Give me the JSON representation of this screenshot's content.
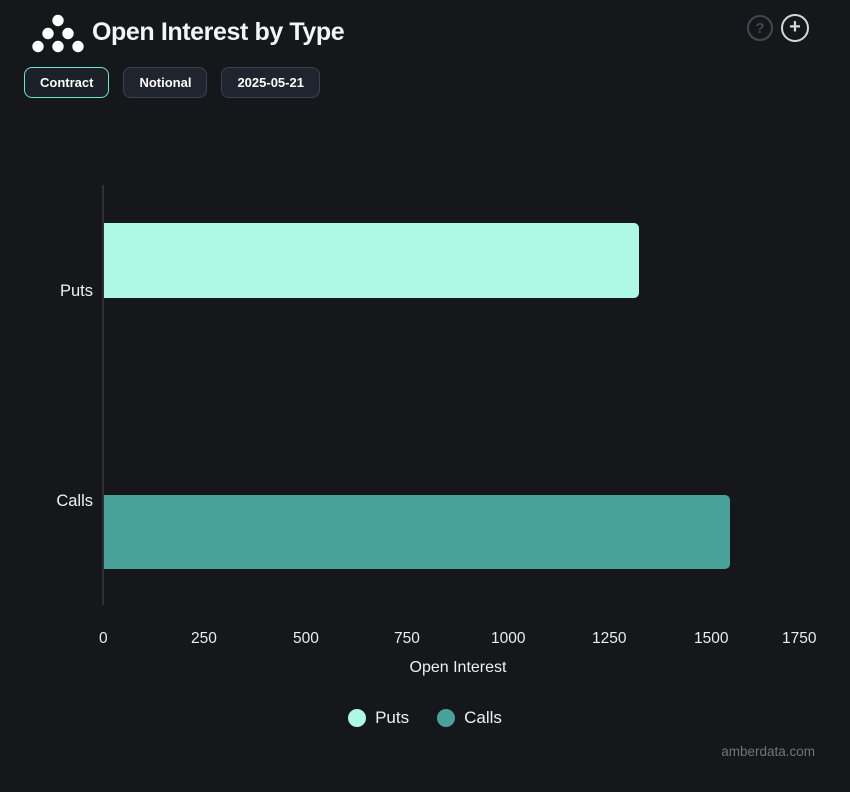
{
  "header": {
    "title": "Open Interest by Type",
    "help_label": "?",
    "add_label": "+"
  },
  "toolbar": {
    "buttons": [
      {
        "label": "Contract",
        "active": true
      },
      {
        "label": "Notional",
        "active": false
      },
      {
        "label": "2025-05-21",
        "active": false
      }
    ]
  },
  "colors": {
    "background": "#15171a",
    "accent_active_border": "#68e8c6",
    "puts": "#aef8e8",
    "calls": "#48a29a"
  },
  "chart_data": {
    "type": "bar",
    "orientation": "horizontal",
    "title": "Open Interest by Type",
    "categories": [
      "Puts",
      "Calls"
    ],
    "values": [
      1320,
      1545
    ],
    "series_colors": [
      "#aef8e8",
      "#48a29a"
    ],
    "xlabel": "Open Interest",
    "xlim": [
      0,
      1750
    ],
    "xticks": [
      0,
      250,
      500,
      750,
      1000,
      1250,
      1500,
      1750
    ],
    "grid": false,
    "legend": {
      "position": "bottom-center",
      "entries": [
        {
          "label": "Puts",
          "color": "#aef8e8"
        },
        {
          "label": "Calls",
          "color": "#48a29a"
        }
      ]
    }
  },
  "footer": {
    "watermark": "amberdata.com"
  }
}
